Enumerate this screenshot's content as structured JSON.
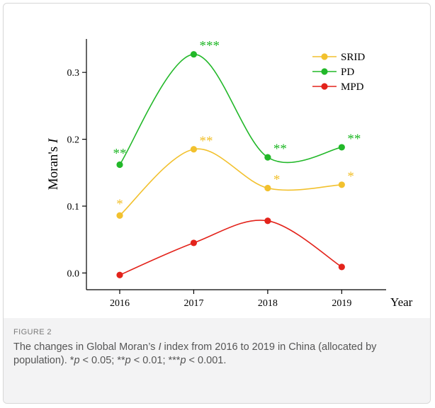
{
  "chart_data": {
    "type": "line",
    "title": "",
    "xlabel": "Year",
    "ylabel_prefix": "Moran's ",
    "ylabel_var": "I",
    "x": [
      2016,
      2017,
      2018,
      2019
    ],
    "x_tick_labels": [
      "2016",
      "2017",
      "2018",
      "2019"
    ],
    "ylim": [
      -0.025,
      0.35
    ],
    "xlim": [
      2015.55,
      2019.6
    ],
    "y_ticks": [
      0.0,
      0.1,
      0.2,
      0.3
    ],
    "y_tick_labels": [
      "0.0",
      "0.1",
      "0.2",
      "0.3"
    ],
    "grid": false,
    "legend_position": "top-right",
    "series": [
      {
        "name": "SRID",
        "color": "#f2c12e",
        "values": [
          0.086,
          0.185,
          0.127,
          0.132
        ],
        "significance": [
          "*",
          "**",
          "*",
          "*"
        ]
      },
      {
        "name": "PD",
        "color": "#22b829",
        "values": [
          0.162,
          0.327,
          0.173,
          0.188
        ],
        "significance": [
          "**",
          "***",
          "**",
          "**"
        ]
      },
      {
        "name": "MPD",
        "color": "#e3231b",
        "values": [
          -0.003,
          0.045,
          0.078,
          0.009
        ],
        "significance": [
          "",
          "",
          "",
          ""
        ]
      }
    ]
  },
  "figure": {
    "label": "FIGURE 2",
    "caption": "The changes in Global Moran’s I index from 2016 to 2019 in China (allocated by population). *p < 0.05; **p < 0.01; ***p < 0.001."
  }
}
